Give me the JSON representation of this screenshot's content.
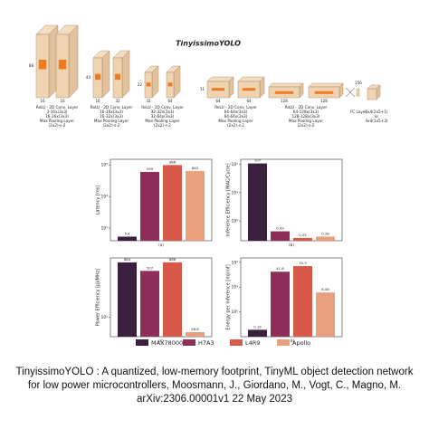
{
  "figure": {
    "title": "TinyissimoYOLO",
    "stages": [
      {
        "size": "88",
        "channels": [
          "16",
          "16"
        ],
        "caption": [
          "ReLU - 2D Conv. Layer",
          "3-16x(3x3)",
          "16-16x(3x3)",
          "Max Pooling Layer",
          "(2x2)-s-2"
        ]
      },
      {
        "size": "44",
        "channels": [
          "16",
          "32"
        ],
        "caption": [
          "ReLU - 2D Conv. Layer",
          "16-16x(3x3)",
          "16-32x(3x3)",
          "Max Pooling Layer",
          "(2x2)-s-2"
        ]
      },
      {
        "size": "22",
        "channels": [
          "32",
          "64"
        ],
        "caption": [
          "ReLU - 2D Conv. Layer",
          "32-32x(3x3)",
          "32-64x(3x3)",
          "Max Pooling Layer",
          "(2x2)-s-2"
        ]
      },
      {
        "size": "11",
        "channels": [
          "64",
          "64"
        ],
        "caption": [
          "ReLU - 2D Conv. Layer",
          "64-64x(3x3)",
          "64-64x(3x3)",
          "Max Pooling Layer",
          "(2x2)-s-2"
        ]
      },
      {
        "channels": [
          "128",
          "128"
        ],
        "caption": [
          "ReLU - 2D Conv. Layer",
          "64-128x(3x3)",
          "128-128x(3x3)",
          "Max Pooling Layer",
          "(2x2)-s-2"
        ]
      }
    ],
    "fc": {
      "size": "256",
      "caption": [
        "FC Layer"
      ]
    },
    "output": {
      "caption": [
        "6x4(2x5+1)",
        "or",
        "4x4(1x5+3)"
      ]
    }
  },
  "chart_data": [
    {
      "type": "bar",
      "xlabel": "(a)",
      "ylabel": "Latency [ms]",
      "log": true,
      "ylim": [
        4,
        1500
      ],
      "yticks": [
        {
          "value": 10,
          "label": "10¹"
        },
        {
          "value": 100,
          "label": "10²"
        },
        {
          "value": 1000,
          "label": "10³"
        }
      ],
      "series": [
        {
          "name": "MAX78000",
          "color": "#3b1f3f",
          "values": [
            5.4
          ]
        },
        {
          "name": "H7A3",
          "color": "#8e2f5a",
          "values": [
            599
          ]
        },
        {
          "name": "L4R9",
          "color": "#d8584a",
          "values": [
            986
          ]
        },
        {
          "name": "Apollo",
          "color": "#e9a07f",
          "values": [
            640
          ]
        }
      ]
    },
    {
      "type": "bar",
      "xlabel": "(b)",
      "ylabel": "Inference Efficiency [MAC/Cycle]",
      "log": true,
      "ylim": [
        0.2,
        150
      ],
      "yticks": [
        {
          "value": 1,
          "label": "10⁰"
        },
        {
          "value": 10,
          "label": "10¹"
        },
        {
          "value": 100,
          "label": "10²"
        }
      ],
      "series": [
        {
          "name": "MAX78000",
          "color": "#3b1f3f",
          "values": [
            107
          ]
        },
        {
          "name": "H7A3",
          "color": "#8e2f5a",
          "values": [
            0.43
          ]
        },
        {
          "name": "L4R9",
          "color": "#d8584a",
          "values": [
            0.25
          ]
        },
        {
          "name": "Apollo",
          "color": "#e9a07f",
          "values": [
            0.28
          ]
        }
      ]
    },
    {
      "type": "bar",
      "xlabel": "(c)",
      "ylabel": "Power Efficiency [µJ/MHz]",
      "log": true,
      "ylim": [
        50,
        800
      ],
      "yticks": [
        {
          "value": 100,
          "label": "10²"
        }
      ],
      "series": [
        {
          "name": "MAX78000",
          "color": "#3b1f3f",
          "values": [
            684
          ]
        },
        {
          "name": "H7A3",
          "color": "#8e2f5a",
          "values": [
            507
          ]
        },
        {
          "name": "L4R9",
          "color": "#d8584a",
          "values": [
            686
          ]
        },
        {
          "name": "Apollo",
          "color": "#e9a07f",
          "values": [
            58.6
          ]
        }
      ]
    },
    {
      "type": "bar",
      "xlabel": "(d)",
      "ylabel": "Energy per Inference [mJ/inf]",
      "log": true,
      "ylim": [
        0.1,
        150
      ],
      "yticks": [
        {
          "value": 1,
          "label": "10⁰"
        },
        {
          "value": 10,
          "label": "10¹"
        },
        {
          "value": 100,
          "label": "10²"
        }
      ],
      "series": [
        {
          "name": "MAX78000",
          "color": "#3b1f3f",
          "values": [
            0.19
          ]
        },
        {
          "name": "H7A3",
          "color": "#8e2f5a",
          "values": [
            41.8
          ]
        },
        {
          "name": "L4R9",
          "color": "#d8584a",
          "values": [
            70.3
          ]
        },
        {
          "name": "Apollo",
          "color": "#e9a07f",
          "values": [
            6.08
          ]
        }
      ]
    }
  ],
  "caption": "TinyissimoYOLO : A quantized, low-memory footprint, TinyML object detection network for low power microcontrollers, Moosmann, J., Giordano, M., Vogt, C., Magno, M. arXiv:2306.00001v1 22 May 2023"
}
